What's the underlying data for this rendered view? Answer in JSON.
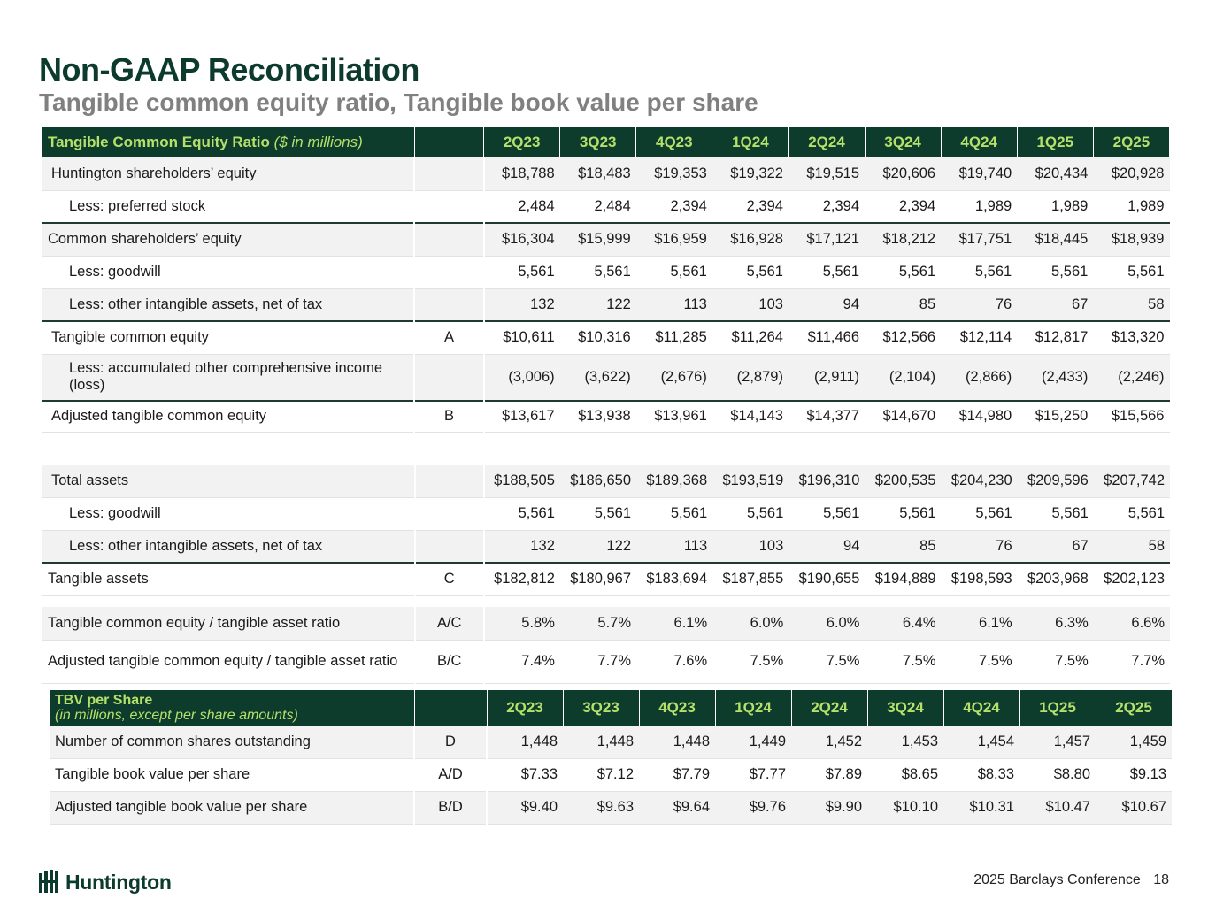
{
  "title": "Non-GAAP Reconciliation",
  "subtitle": "Tangible common equity ratio, Tangible book value per share",
  "periods": [
    "2Q23",
    "3Q23",
    "4Q23",
    "1Q24",
    "2Q24",
    "3Q24",
    "4Q24",
    "1Q25",
    "2Q25"
  ],
  "tce_header": {
    "label": "Tangible Common Equity Ratio",
    "unit": "($ in millions)"
  },
  "tce_rows": [
    {
      "label": "Huntington shareholders’ equity",
      "ref": "",
      "values": [
        "$18,788",
        "$18,483",
        "$19,353",
        "$19,322",
        "$19,515",
        "$20,606",
        "$19,740",
        "$20,434",
        "$20,928"
      ]
    },
    {
      "label": "Less: preferred stock",
      "ref": "",
      "values": [
        "2,484",
        "2,484",
        "2,394",
        "2,394",
        "2,394",
        "2,394",
        "1,989",
        "1,989",
        "1,989"
      ]
    },
    {
      "label": "Common shareholders’ equity",
      "ref": "",
      "values": [
        "$16,304",
        "$15,999",
        "$16,959",
        "$16,928",
        "$17,121",
        "$18,212",
        "$17,751",
        "$18,445",
        "$18,939"
      ]
    },
    {
      "label": "Less: goodwill",
      "ref": "",
      "values": [
        "5,561",
        "5,561",
        "5,561",
        "5,561",
        "5,561",
        "5,561",
        "5,561",
        "5,561",
        "5,561"
      ]
    },
    {
      "label": "Less: other intangible assets, net of tax",
      "ref": "",
      "values": [
        "132",
        "122",
        "113",
        "103",
        "94",
        "85",
        "76",
        "67",
        "58"
      ]
    },
    {
      "label": "Tangible common equity",
      "ref": "A",
      "values": [
        "$10,611",
        "$10,316",
        "$11,285",
        "$11,264",
        "$11,466",
        "$12,566",
        "$12,114",
        "$12,817",
        "$13,320"
      ]
    },
    {
      "label": "Less: accumulated other comprehensive income (loss)",
      "ref": "",
      "values": [
        "(3,006)",
        "(3,622)",
        "(2,676)",
        "(2,879)",
        "(2,911)",
        "(2,104)",
        "(2,866)",
        "(2,433)",
        "(2,246)"
      ]
    },
    {
      "label": "Adjusted tangible common equity",
      "ref": "B",
      "values": [
        "$13,617",
        "$13,938",
        "$13,961",
        "$14,143",
        "$14,377",
        "$14,670",
        "$14,980",
        "$15,250",
        "$15,566"
      ]
    }
  ],
  "asset_rows": [
    {
      "label": "Total assets",
      "ref": "",
      "values": [
        "$188,505",
        "$186,650",
        "$189,368",
        "$193,519",
        "$196,310",
        "$200,535",
        "$204,230",
        "$209,596",
        "$207,742"
      ]
    },
    {
      "label": "Less: goodwill",
      "ref": "",
      "values": [
        "5,561",
        "5,561",
        "5,561",
        "5,561",
        "5,561",
        "5,561",
        "5,561",
        "5,561",
        "5,561"
      ]
    },
    {
      "label": "Less: other intangible assets, net of tax",
      "ref": "",
      "values": [
        "132",
        "122",
        "113",
        "103",
        "94",
        "85",
        "76",
        "67",
        "58"
      ]
    },
    {
      "label": "Tangible assets",
      "ref": "C",
      "values": [
        "$182,812",
        "$180,967",
        "$183,694",
        "$187,855",
        "$190,655",
        "$194,889",
        "$198,593",
        "$203,968",
        "$202,123"
      ]
    }
  ],
  "ratio_rows": [
    {
      "label": "Tangible common equity / tangible asset ratio",
      "ref": "A/C",
      "values": [
        "5.8%",
        "5.7%",
        "6.1%",
        "6.0%",
        "6.0%",
        "6.4%",
        "6.1%",
        "6.3%",
        "6.6%"
      ]
    },
    {
      "label": "Adjusted tangible common equity / tangible asset ratio",
      "ref": "B/C",
      "values": [
        "7.4%",
        "7.7%",
        "7.6%",
        "7.5%",
        "7.5%",
        "7.5%",
        "7.5%",
        "7.5%",
        "7.7%"
      ]
    }
  ],
  "tbv_header": {
    "label": "TBV per Share",
    "unit": "(in millions, except per share amounts)"
  },
  "tbv_rows": [
    {
      "label": "Number of common shares outstanding",
      "ref": "D",
      "values": [
        "1,448",
        "1,448",
        "1,448",
        "1,449",
        "1,452",
        "1,453",
        "1,454",
        "1,457",
        "1,459"
      ]
    },
    {
      "label": "Tangible book value per share",
      "ref": "A/D",
      "values": [
        "$7.33",
        "$7.12",
        "$7.79",
        "$7.77",
        "$7.89",
        "$8.65",
        "$8.33",
        "$8.80",
        "$9.13"
      ]
    },
    {
      "label": "Adjusted tangible book value per share",
      "ref": "B/D",
      "values": [
        "$9.40",
        "$9.63",
        "$9.64",
        "$9.76",
        "$9.90",
        "$10.10",
        "$10.31",
        "$10.47",
        "$10.67"
      ]
    }
  ],
  "logo": {
    "icon": "huntington-logo-icon",
    "text": "Huntington"
  },
  "footer": {
    "conference": "2025 Barclays Conference",
    "page": "18"
  }
}
